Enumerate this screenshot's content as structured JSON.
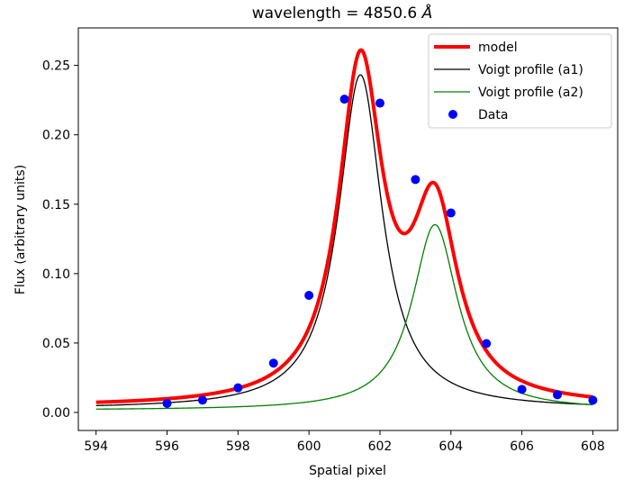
{
  "chart_data": {
    "type": "line",
    "title": "wavelength = 4850.6",
    "title_unit": "Å",
    "xlabel": "Spatial pixel",
    "ylabel": "Flux (arbitrary units)",
    "xlim": [
      593.5,
      608.7
    ],
    "ylim": [
      -0.013,
      0.277
    ],
    "x_ticks": [
      594,
      596,
      598,
      600,
      602,
      604,
      606,
      608
    ],
    "y_ticks": [
      0.0,
      0.05,
      0.1,
      0.15,
      0.2,
      0.25
    ],
    "y_tick_labels": [
      "0.00",
      "0.05",
      "0.10",
      "0.15",
      "0.20",
      "0.25"
    ],
    "x_range": [
      594,
      608
    ],
    "grid": false,
    "legend_position": "top-right",
    "series": [
      {
        "name": "model",
        "kind": "line",
        "color": "#ff0000",
        "components": [
          "Voigt profile (a1)",
          "Voigt profile (a2)"
        ]
      },
      {
        "name": "Voigt profile (a1)",
        "kind": "line",
        "color": "#000000",
        "peak_x": 601.45,
        "peak_y": 0.2433,
        "hwhm": 0.75,
        "base_y": 0.0025
      },
      {
        "name": "Voigt profile (a2)",
        "kind": "line",
        "color": "#008000",
        "peak_x": 603.55,
        "peak_y": 0.1353,
        "hwhm": 0.78,
        "base_y": 0.0015
      },
      {
        "name": "Data",
        "kind": "scatter",
        "color": "#0000ff",
        "x": [
          596,
          597,
          598,
          599,
          600,
          601,
          602,
          603,
          604,
          605,
          606,
          607,
          608
        ],
        "y": [
          0.0065,
          0.0088,
          0.0177,
          0.0355,
          0.0843,
          0.2257,
          0.2228,
          0.1678,
          0.1437,
          0.0496,
          0.0166,
          0.0127,
          0.0088
        ]
      }
    ]
  }
}
